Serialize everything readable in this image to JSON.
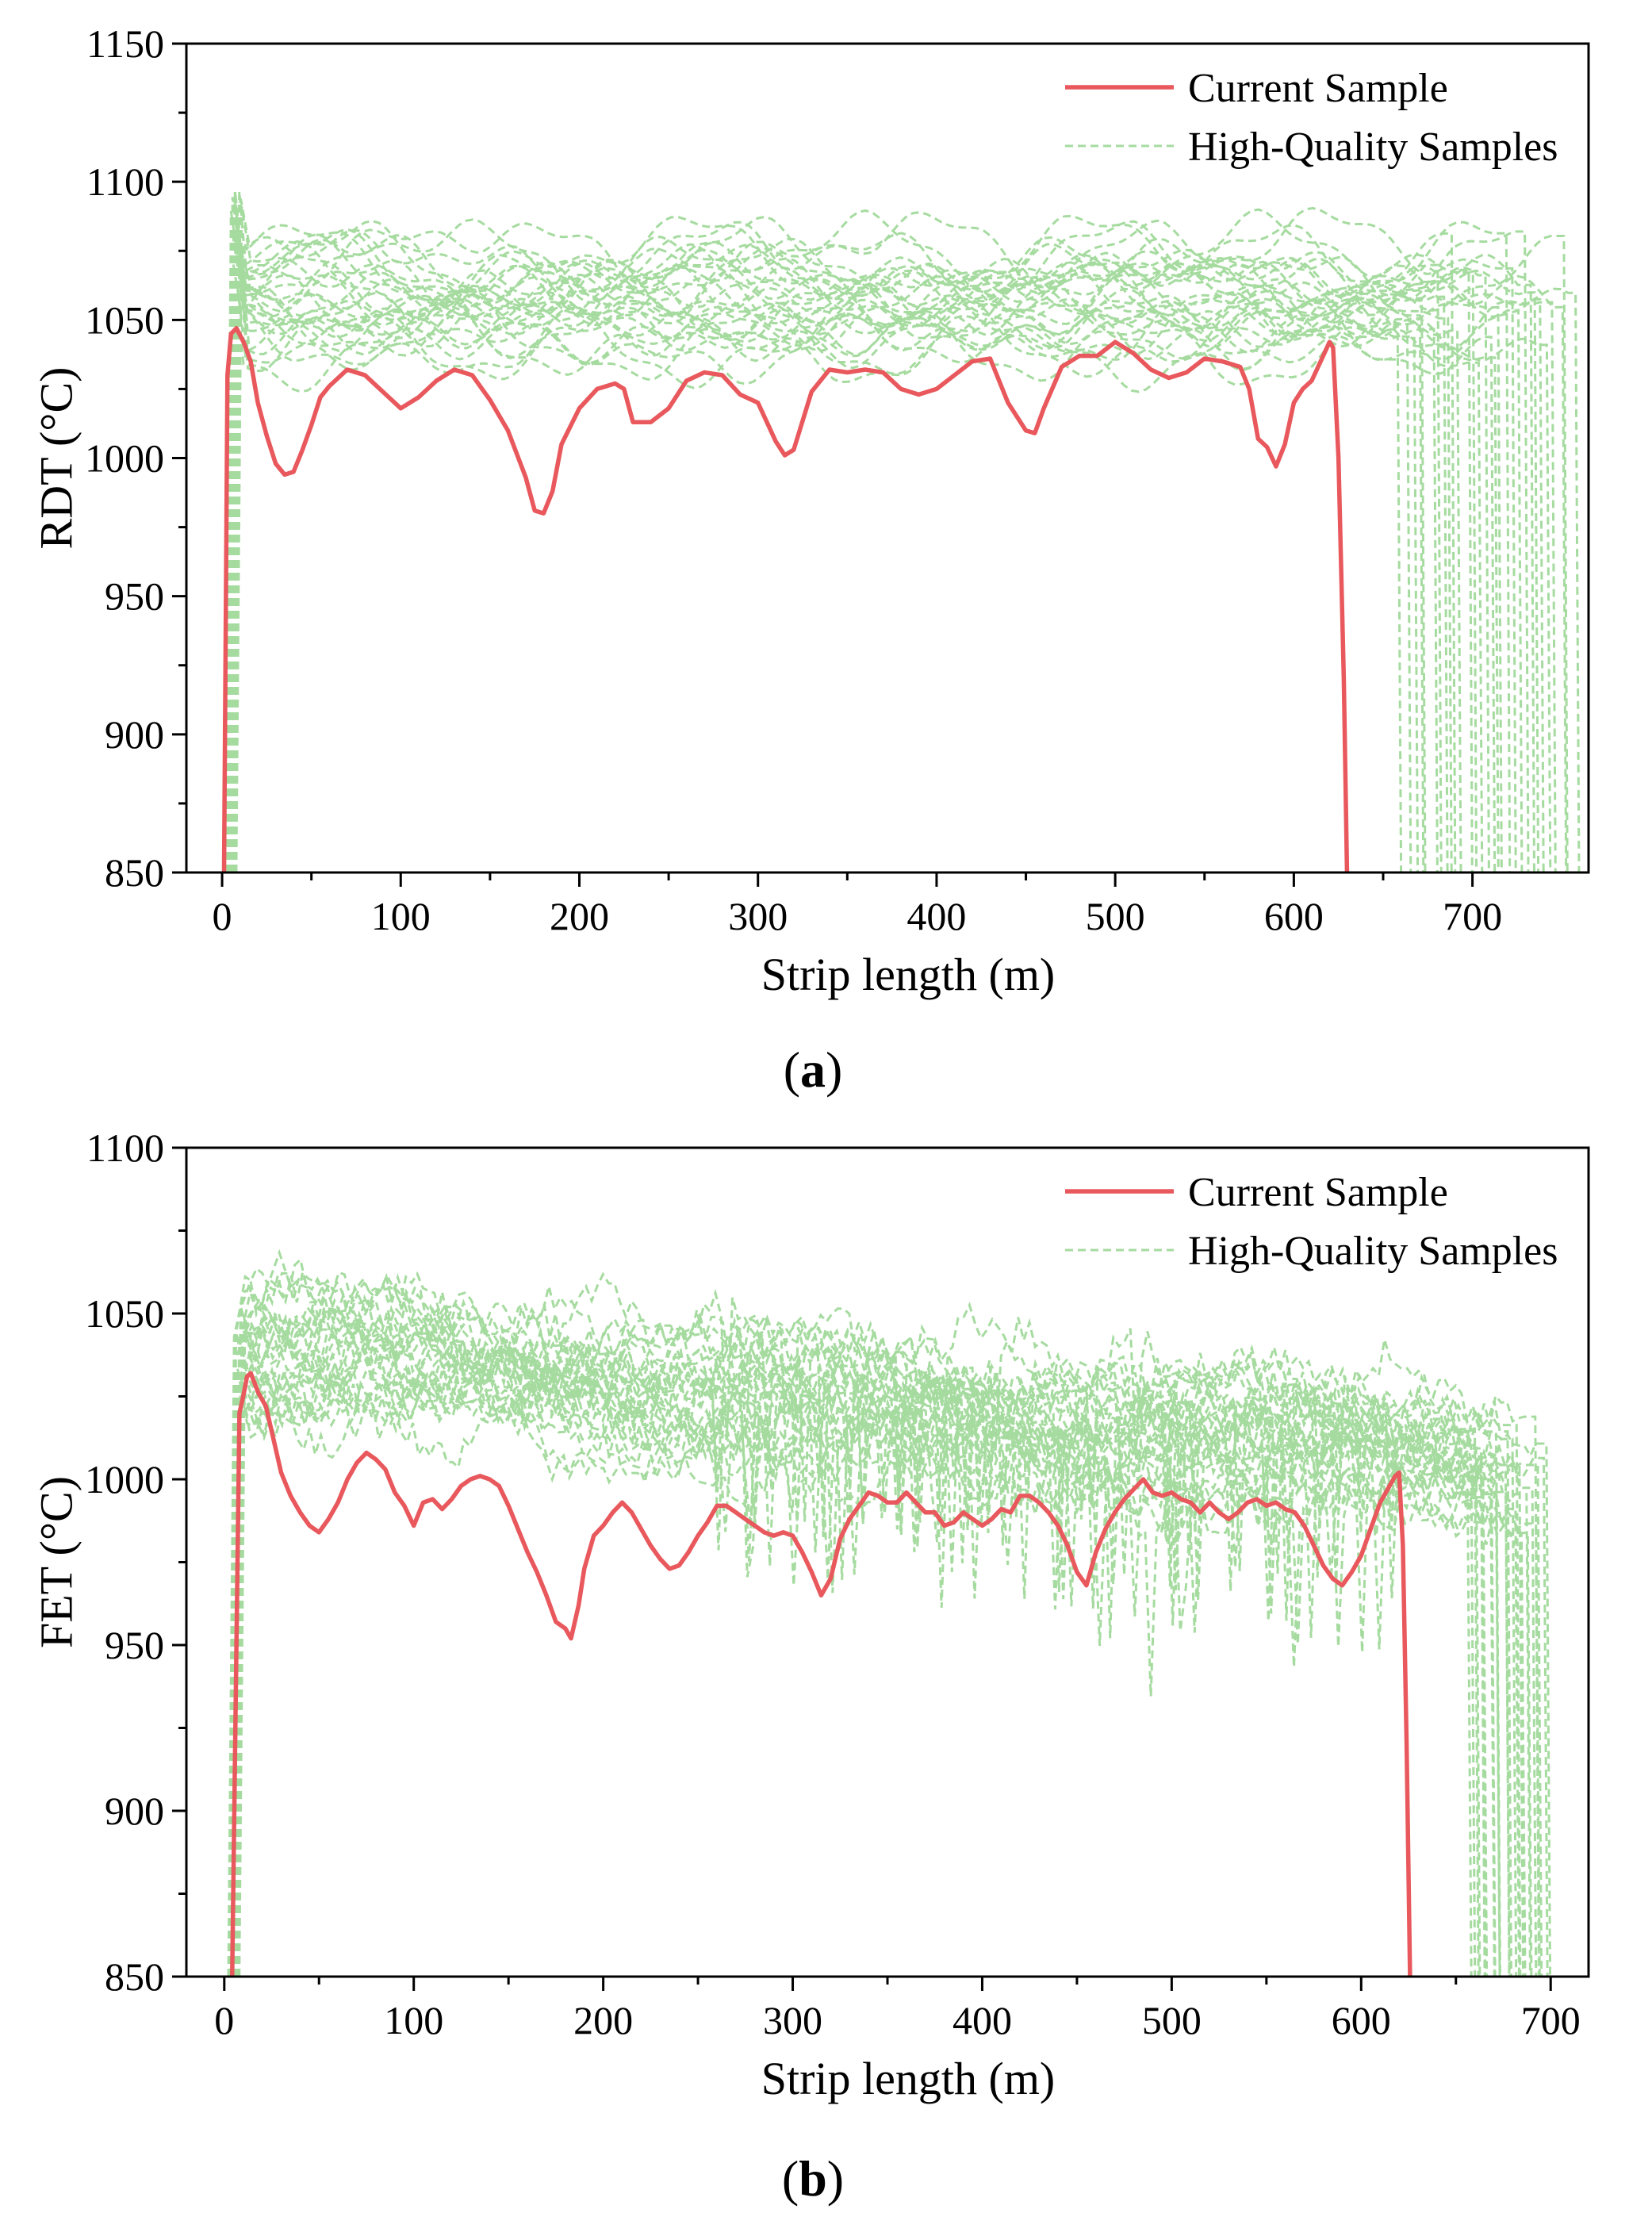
{
  "colors": {
    "current": "#e8585c",
    "high_quality": "#a6dba0",
    "axis": "#000000"
  },
  "chart_data": [
    {
      "id": "a",
      "type": "line",
      "panel_label": "a",
      "title": "",
      "xlabel": "Strip length (m)",
      "ylabel": "RDT (°C)",
      "xlim": [
        -20,
        765
      ],
      "ylim": [
        850,
        1150
      ],
      "xticks": [
        0,
        100,
        200,
        300,
        400,
        500,
        600,
        700
      ],
      "yticks": [
        850,
        900,
        950,
        1000,
        1050,
        1100,
        1150
      ],
      "legend": {
        "position": "top-right",
        "entries": [
          {
            "label": "Current Sample",
            "style": "solid",
            "color": "#e8585c"
          },
          {
            "label": "High-Quality Samples",
            "style": "dashed",
            "color": "#a6dba0"
          }
        ]
      },
      "series": [
        {
          "name": "Current Sample",
          "style": "solid",
          "x": [
            1,
            3,
            5,
            8,
            12,
            16,
            20,
            25,
            30,
            35,
            40,
            45,
            50,
            55,
            60,
            70,
            80,
            90,
            100,
            110,
            120,
            130,
            140,
            150,
            160,
            170,
            175,
            180,
            185,
            190,
            200,
            210,
            220,
            225,
            230,
            240,
            250,
            260,
            270,
            280,
            290,
            300,
            310,
            315,
            320,
            330,
            340,
            350,
            360,
            370,
            380,
            390,
            400,
            410,
            420,
            430,
            440,
            450,
            455,
            460,
            470,
            480,
            490,
            500,
            510,
            520,
            530,
            540,
            550,
            560,
            570,
            575,
            580,
            585,
            590,
            595,
            600,
            605,
            610,
            615,
            620,
            622,
            625,
            628,
            630
          ],
          "values": [
            850,
            1030,
            1045,
            1047,
            1042,
            1035,
            1020,
            1008,
            998,
            994,
            995,
            1003,
            1012,
            1022,
            1026,
            1032,
            1030,
            1024,
            1018,
            1022,
            1028,
            1032,
            1030,
            1021,
            1010,
            993,
            981,
            980,
            988,
            1005,
            1018,
            1025,
            1027,
            1025,
            1013,
            1013,
            1018,
            1028,
            1031,
            1030,
            1023,
            1020,
            1006,
            1001,
            1003,
            1024,
            1032,
            1031,
            1032,
            1031,
            1025,
            1023,
            1025,
            1030,
            1035,
            1036,
            1020,
            1010,
            1009,
            1018,
            1033,
            1037,
            1037,
            1042,
            1038,
            1032,
            1029,
            1031,
            1036,
            1035,
            1033,
            1025,
            1007,
            1004,
            997,
            1005,
            1020,
            1025,
            1028,
            1035,
            1042,
            1040,
            1000,
            920,
            850
          ]
        },
        {
          "name": "High-Quality Samples",
          "style": "dashed",
          "count": 30,
          "mean_level": 1058,
          "spread": 17,
          "start_value": 850,
          "end_length_range": [
            662,
            758
          ]
        }
      ]
    },
    {
      "id": "b",
      "type": "line",
      "panel_label": "b",
      "title": "",
      "xlabel": "Strip length (m)",
      "ylabel": "FET (°C)",
      "xlim": [
        -20,
        720
      ],
      "ylim": [
        850,
        1100
      ],
      "xticks": [
        0,
        100,
        200,
        300,
        400,
        500,
        600,
        700
      ],
      "yticks": [
        850,
        900,
        950,
        1000,
        1050,
        1100
      ],
      "legend": {
        "position": "top-right",
        "entries": [
          {
            "label": "Current Sample",
            "style": "solid",
            "color": "#e8585c"
          },
          {
            "label": "High-Quality Samples",
            "style": "dashed",
            "color": "#a6dba0"
          }
        ]
      },
      "series": [
        {
          "name": "Current Sample",
          "style": "solid",
          "x": [
            4,
            8,
            10,
            12,
            14,
            18,
            22,
            26,
            30,
            35,
            40,
            45,
            50,
            55,
            60,
            65,
            70,
            75,
            80,
            85,
            90,
            95,
            100,
            105,
            110,
            115,
            120,
            125,
            130,
            135,
            140,
            145,
            150,
            155,
            160,
            165,
            170,
            175,
            180,
            183,
            187,
            190,
            195,
            200,
            205,
            210,
            215,
            220,
            225,
            230,
            235,
            240,
            245,
            250,
            255,
            260,
            265,
            270,
            275,
            280,
            285,
            290,
            295,
            300,
            305,
            310,
            315,
            320,
            325,
            330,
            335,
            340,
            345,
            350,
            355,
            360,
            365,
            370,
            375,
            380,
            385,
            390,
            395,
            400,
            405,
            410,
            415,
            420,
            425,
            430,
            435,
            440,
            445,
            450,
            455,
            460,
            465,
            470,
            475,
            480,
            485,
            490,
            495,
            500,
            505,
            510,
            515,
            520,
            525,
            530,
            535,
            540,
            545,
            550,
            555,
            560,
            565,
            570,
            575,
            580,
            585,
            590,
            595,
            600,
            605,
            610,
            615,
            618,
            620,
            622,
            624,
            626
          ],
          "values": [
            850,
            1020,
            1025,
            1031,
            1032,
            1026,
            1022,
            1012,
            1002,
            995,
            990,
            986,
            984,
            988,
            993,
            1000,
            1005,
            1008,
            1006,
            1003,
            996,
            992,
            986,
            993,
            994,
            991,
            994,
            998,
            1000,
            1001,
            1000,
            998,
            992,
            985,
            978,
            972,
            965,
            957,
            955,
            952,
            962,
            973,
            983,
            986,
            990,
            993,
            990,
            985,
            980,
            976,
            973,
            974,
            978,
            983,
            987,
            992,
            992,
            990,
            988,
            986,
            984,
            983,
            984,
            983,
            978,
            972,
            965,
            970,
            982,
            988,
            992,
            996,
            995,
            993,
            993,
            996,
            993,
            990,
            990,
            986,
            987,
            990,
            988,
            986,
            988,
            991,
            990,
            995,
            995,
            993,
            990,
            986,
            980,
            972,
            968,
            978,
            985,
            990,
            994,
            997,
            1000,
            996,
            995,
            996,
            994,
            993,
            990,
            993,
            990,
            988,
            990,
            993,
            994,
            992,
            993,
            991,
            990,
            986,
            980,
            974,
            970,
            968,
            972,
            977,
            985,
            993,
            998,
            1001,
            1002,
            980,
            920,
            850
          ]
        },
        {
          "name": "High-Quality Samples",
          "style": "dashed",
          "count": 28,
          "mean_level": 1015,
          "spread": 14,
          "start_value": 850,
          "end_length_range": [
            658,
            700
          ]
        }
      ]
    }
  ]
}
